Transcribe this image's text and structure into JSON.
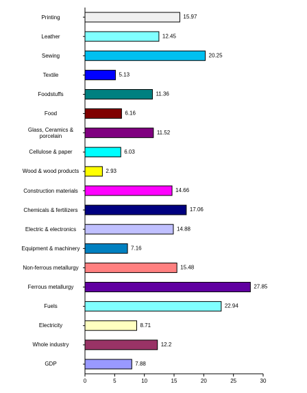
{
  "chart_data": {
    "type": "bar",
    "orientation": "horizontal",
    "categories": [
      "Printing",
      "Leather",
      "Sewing",
      "Textile",
      "Foodstuffs",
      "Food",
      "Glass, Ceramics & porcelain",
      "Cellulose & paper",
      "Wood & wood products",
      "Construction materials",
      "Chemicals & fertilizers",
      "Electric & electronics",
      "Equipment & machinery",
      "Non-ferrous metallurgy",
      "Ferrous metallurgy",
      "Fuels",
      "Electricity",
      "Whole industry",
      "GDP"
    ],
    "values": [
      15.97,
      12.45,
      20.25,
      5.13,
      11.36,
      6.16,
      11.52,
      6.03,
      2.93,
      14.66,
      17.06,
      14.88,
      7.16,
      15.48,
      27.85,
      22.94,
      8.71,
      12.2,
      7.88
    ],
    "colors": [
      "#f0f0f0",
      "#80ffff",
      "#00c0f0",
      "#0000ff",
      "#008080",
      "#800000",
      "#800080",
      "#00ffff",
      "#ffff00",
      "#ff00ff",
      "#000080",
      "#c0c0ff",
      "#0080c0",
      "#ff8080",
      "#6000a0",
      "#80ffff",
      "#ffffc0",
      "#993366",
      "#9999ff"
    ],
    "xlim": [
      0,
      30
    ],
    "xticks": [
      0,
      5,
      10,
      15,
      20,
      25,
      30
    ]
  }
}
